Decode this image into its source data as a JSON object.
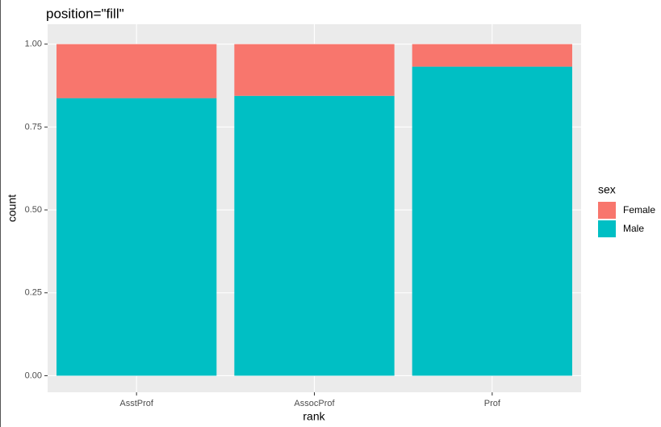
{
  "chart_data": {
    "type": "stacked_bar",
    "title": "position=\"fill\"",
    "x_label": "rank",
    "y_label": "count",
    "categories": [
      "AsstProf",
      "AssocProf",
      "Prof"
    ],
    "series": [
      {
        "name": "Female",
        "color": "#f8766d",
        "values": [
          0.163,
          0.156,
          0.068
        ]
      },
      {
        "name": "Male",
        "color": "#00bfc4",
        "values": [
          0.837,
          0.844,
          0.932
        ]
      }
    ],
    "stack_order": [
      "Male",
      "Female"
    ],
    "legend_title": "sex",
    "legend_position": "right",
    "ylim": [
      -0.05,
      1.06
    ],
    "yticks": [
      {
        "value": 0,
        "label": "0.00"
      },
      {
        "value": 0.25,
        "label": "0.25"
      },
      {
        "value": 0.5,
        "label": "0.50"
      },
      {
        "value": 0.75,
        "label": "0.75"
      },
      {
        "value": 1,
        "label": "1.00"
      }
    ],
    "grid": true
  }
}
